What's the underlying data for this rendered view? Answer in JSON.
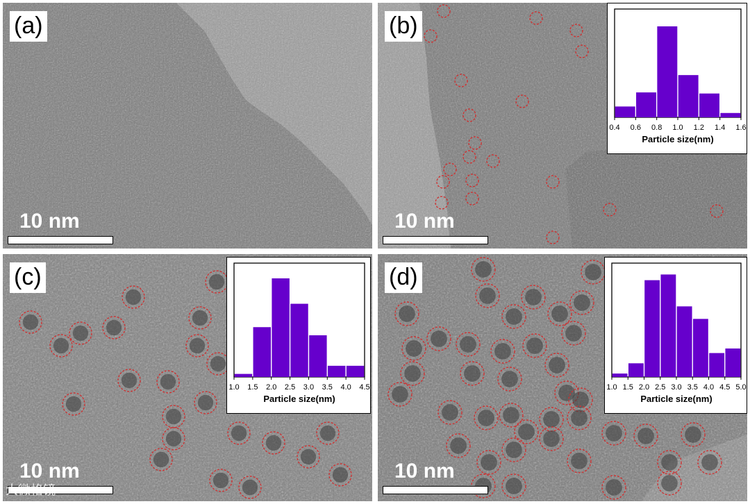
{
  "panels": [
    {
      "id": "a",
      "label": "(a)",
      "scale_text": "10 nm"
    },
    {
      "id": "b",
      "label": "(b)",
      "scale_text": "10 nm"
    },
    {
      "id": "c",
      "label": "(c)",
      "scale_text": "10 nm"
    },
    {
      "id": "d",
      "label": "(d)",
      "scale_text": "10 nm"
    }
  ],
  "watermark": "大微格镜",
  "chart_data": [
    {
      "type": "bar",
      "panel": "b",
      "xlabel": "Particle size(nm)",
      "ylabel": "",
      "bins": [
        [
          0.4,
          0.6
        ],
        [
          0.6,
          0.8
        ],
        [
          0.8,
          1.0
        ],
        [
          1.0,
          1.2
        ],
        [
          1.2,
          1.4
        ],
        [
          1.4,
          1.6
        ]
      ],
      "values": [
        10,
        23,
        84,
        39,
        22,
        4
      ],
      "xticks": [
        0.4,
        0.6,
        0.8,
        1.0,
        1.2,
        1.4,
        1.6
      ],
      "xtick_labels": [
        "0.4",
        "0.6",
        "0.8",
        "1.0",
        "1.2",
        "1.4",
        "1.6"
      ],
      "xlim": [
        0.4,
        1.6
      ],
      "ylim": [
        0,
        100
      ],
      "color": "#6600cc"
    },
    {
      "type": "bar",
      "panel": "c",
      "xlabel": "Particle size(nm)",
      "ylabel": "",
      "bins": [
        [
          1.0,
          1.5
        ],
        [
          1.5,
          2.0
        ],
        [
          2.0,
          2.5
        ],
        [
          2.5,
          3.0
        ],
        [
          3.0,
          3.5
        ],
        [
          3.5,
          4.0
        ],
        [
          4.0,
          4.5
        ]
      ],
      "values": [
        3,
        49,
        97,
        72,
        41,
        11,
        11
      ],
      "xticks": [
        1.0,
        1.5,
        2.0,
        2.5,
        3.0,
        3.5,
        4.0,
        4.5
      ],
      "xtick_labels": [
        "1.0",
        "1.5",
        "2.0",
        "2.5",
        "3.0",
        "3.5",
        "4.0",
        "4.5"
      ],
      "xlim": [
        1.0,
        4.5
      ],
      "ylim": [
        0,
        112
      ],
      "color": "#6600cc"
    },
    {
      "type": "bar",
      "panel": "d",
      "xlabel": "Particle size(nm)",
      "ylabel": "",
      "bins": [
        [
          1.0,
          1.5
        ],
        [
          1.5,
          2.0
        ],
        [
          2.0,
          2.5
        ],
        [
          2.5,
          3.0
        ],
        [
          3.0,
          3.5
        ],
        [
          3.5,
          4.0
        ],
        [
          4.0,
          4.5
        ],
        [
          4.5,
          5.0
        ]
      ],
      "values": [
        3,
        12,
        85,
        90,
        62,
        51,
        21,
        25
      ],
      "xticks": [
        1.0,
        1.5,
        2.0,
        2.5,
        3.0,
        3.5,
        4.0,
        4.5,
        5.0
      ],
      "xtick_labels": [
        "1.0",
        "1.5",
        "2.0",
        "2.5",
        "3.0",
        "3.5",
        "4.0",
        "4.5",
        "5.0"
      ],
      "xlim": [
        1.0,
        5.0
      ],
      "ylim": [
        0,
        100
      ],
      "color": "#6600cc"
    }
  ],
  "colors": {
    "bar": "#6600cc",
    "circle": "#cc3333",
    "background": "#8a8a8a"
  }
}
